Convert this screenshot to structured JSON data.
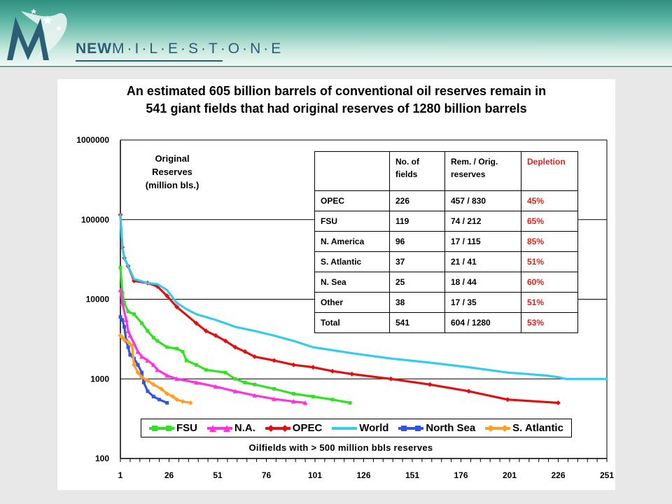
{
  "header": {
    "logo_new": "NEW",
    "logo_milestone": "M·I·L·E·S·T·O·N·E"
  },
  "chart_data": {
    "type": "line",
    "title_line1": "An estimated 605 billion barrels of conventional oil reserves remain in",
    "title_line2": "541 giant fields that had original reserves of 1280 billion barrels",
    "ylabel_lines": [
      "Original",
      "Reserves",
      "(million bls.)"
    ],
    "xlabel": "Oilfields with > 500 million bbls reserves",
    "y_scale": "log",
    "ylim": [
      100,
      1000000
    ],
    "y_ticks": [
      100,
      1000,
      10000,
      100000,
      1000000
    ],
    "y_tick_labels": [
      "100",
      "1000",
      "10000",
      "100000",
      "1000000"
    ],
    "xlim": [
      1,
      251
    ],
    "x_ticks": [
      1,
      26,
      51,
      76,
      101,
      126,
      151,
      176,
      201,
      226,
      251
    ],
    "x_tick_labels": [
      "1",
      "26",
      "51",
      "76",
      "101",
      "126",
      "151",
      "176",
      "201",
      "226",
      "251"
    ],
    "legend_position": "bottom",
    "series": [
      {
        "name": "FSU",
        "color": "#33e022",
        "marker": "square",
        "points": [
          [
            1,
            25000
          ],
          [
            2,
            12000
          ],
          [
            3,
            9000
          ],
          [
            5,
            7000
          ],
          [
            8,
            6500
          ],
          [
            12,
            5000
          ],
          [
            15,
            4000
          ],
          [
            18,
            3300
          ],
          [
            20,
            3000
          ],
          [
            25,
            2500
          ],
          [
            30,
            2400
          ],
          [
            33,
            2200
          ],
          [
            35,
            1700
          ],
          [
            40,
            1500
          ],
          [
            45,
            1300
          ],
          [
            55,
            1200
          ],
          [
            60,
            1000
          ],
          [
            65,
            900
          ],
          [
            70,
            850
          ],
          [
            80,
            750
          ],
          [
            90,
            650
          ],
          [
            100,
            600
          ],
          [
            110,
            550
          ],
          [
            119,
            500
          ]
        ]
      },
      {
        "name": "N.A.",
        "color": "#ff33dd",
        "marker": "triangle",
        "points": [
          [
            1,
            13000
          ],
          [
            2,
            9000
          ],
          [
            4,
            5500
          ],
          [
            5,
            4000
          ],
          [
            6,
            3500
          ],
          [
            8,
            2800
          ],
          [
            10,
            2200
          ],
          [
            12,
            1900
          ],
          [
            15,
            1700
          ],
          [
            18,
            1500
          ],
          [
            20,
            1300
          ],
          [
            25,
            1100
          ],
          [
            30,
            1000
          ],
          [
            40,
            900
          ],
          [
            50,
            800
          ],
          [
            60,
            700
          ],
          [
            70,
            620
          ],
          [
            80,
            560
          ],
          [
            90,
            520
          ],
          [
            96,
            500
          ]
        ]
      },
      {
        "name": "OPEC",
        "color": "#e01010",
        "marker": "diamond",
        "points": [
          [
            1,
            115000
          ],
          [
            2,
            45000
          ],
          [
            3,
            33000
          ],
          [
            5,
            26000
          ],
          [
            8,
            17000
          ],
          [
            15,
            16000
          ],
          [
            20,
            14500
          ],
          [
            25,
            11000
          ],
          [
            30,
            8000
          ],
          [
            40,
            5000
          ],
          [
            45,
            4000
          ],
          [
            50,
            3500
          ],
          [
            55,
            3000
          ],
          [
            60,
            2500
          ],
          [
            65,
            2200
          ],
          [
            70,
            1900
          ],
          [
            80,
            1700
          ],
          [
            90,
            1500
          ],
          [
            100,
            1400
          ],
          [
            110,
            1250
          ],
          [
            120,
            1150
          ],
          [
            140,
            1000
          ],
          [
            160,
            850
          ],
          [
            180,
            700
          ],
          [
            200,
            550
          ],
          [
            226,
            500
          ]
        ]
      },
      {
        "name": "World",
        "color": "#33ccee",
        "marker": "dash",
        "points": [
          [
            1,
            115000
          ],
          [
            2,
            45000
          ],
          [
            3,
            33000
          ],
          [
            5,
            26000
          ],
          [
            8,
            18000
          ],
          [
            15,
            16000
          ],
          [
            20,
            15500
          ],
          [
            25,
            13000
          ],
          [
            30,
            9000
          ],
          [
            35,
            7500
          ],
          [
            40,
            6500
          ],
          [
            50,
            5500
          ],
          [
            60,
            4500
          ],
          [
            70,
            4000
          ],
          [
            80,
            3500
          ],
          [
            90,
            3000
          ],
          [
            100,
            2500
          ],
          [
            120,
            2100
          ],
          [
            140,
            1800
          ],
          [
            160,
            1600
          ],
          [
            180,
            1400
          ],
          [
            200,
            1200
          ],
          [
            220,
            1100
          ],
          [
            226,
            1050
          ],
          [
            230,
            1000
          ],
          [
            251,
            1000
          ]
        ]
      },
      {
        "name": "North Sea",
        "color": "#3355dd",
        "marker": "square",
        "points": [
          [
            1,
            6000
          ],
          [
            2,
            5500
          ],
          [
            3,
            4500
          ],
          [
            4,
            3000
          ],
          [
            5,
            2500
          ],
          [
            6,
            2000
          ],
          [
            8,
            1800
          ],
          [
            10,
            1500
          ],
          [
            12,
            1200
          ],
          [
            13,
            900
          ],
          [
            15,
            700
          ],
          [
            18,
            600
          ],
          [
            21,
            550
          ],
          [
            25,
            500
          ]
        ]
      },
      {
        "name": "S. Atlantic",
        "color": "#ffa020",
        "marker": "diamond",
        "points": [
          [
            1,
            3500
          ],
          [
            2,
            3300
          ],
          [
            3,
            3100
          ],
          [
            5,
            2900
          ],
          [
            7,
            2600
          ],
          [
            8,
            1500
          ],
          [
            10,
            1200
          ],
          [
            12,
            1050
          ],
          [
            15,
            950
          ],
          [
            18,
            850
          ],
          [
            22,
            750
          ],
          [
            25,
            650
          ],
          [
            28,
            600
          ],
          [
            30,
            550
          ],
          [
            33,
            520
          ],
          [
            37,
            500
          ]
        ]
      }
    ]
  },
  "table": {
    "headers": [
      "",
      "No. of\nfields",
      "Rem. / Orig.\nreserves",
      "Depletion"
    ],
    "rows": [
      [
        "OPEC",
        "226",
        "457 / 830",
        "45%"
      ],
      [
        "FSU",
        "119",
        "74 / 212",
        "65%"
      ],
      [
        "N. America",
        "96",
        "17 / 115",
        "85%"
      ],
      [
        "S. Atlantic",
        "37",
        "21 / 41",
        "51%"
      ],
      [
        "N. Sea",
        "25",
        "18 / 44",
        "60%"
      ],
      [
        "Other",
        "38",
        "17 / 35",
        "51%"
      ],
      [
        "Total",
        "541",
        "604 / 1280",
        "53%"
      ]
    ],
    "depletion_color": "#e0201b"
  }
}
